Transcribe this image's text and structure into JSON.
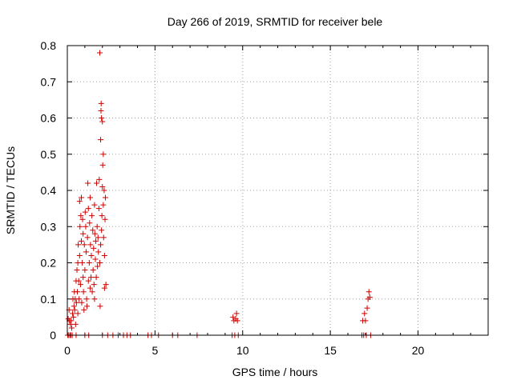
{
  "chart_data": {
    "type": "scatter",
    "title": "Day 266 of 2019, SRMTID for receiver bele",
    "xlabel": "GPS time / hours",
    "ylabel": "SRMTID / TECUs",
    "xlim": [
      0,
      24
    ],
    "ylim": [
      0,
      0.8
    ],
    "xticks": [
      0,
      5,
      10,
      15,
      20
    ],
    "yticks": [
      0,
      0.1,
      0.2,
      0.3,
      0.4,
      0.5,
      0.6,
      0.7,
      0.8
    ],
    "xtick_labels": [
      "0",
      "5",
      "10",
      "15",
      "20"
    ],
    "ytick_labels": [
      "0",
      "0.1",
      "0.2",
      "0.3",
      "0.4",
      "0.5",
      "0.6",
      "0.7",
      "0.8"
    ],
    "grid": true,
    "marker": "+",
    "color": "#d00000",
    "series": [
      {
        "name": "SRMTID",
        "points": [
          [
            0.02,
            0.0
          ],
          [
            0.05,
            0.045
          ],
          [
            0.08,
            0.0
          ],
          [
            0.1,
            0.07
          ],
          [
            0.12,
            0.04
          ],
          [
            0.15,
            0.0
          ],
          [
            0.18,
            0.03
          ],
          [
            0.2,
            0.0
          ],
          [
            0.22,
            0.04
          ],
          [
            0.25,
            0.02
          ],
          [
            0.28,
            0.0
          ],
          [
            0.3,
            0.06
          ],
          [
            0.32,
            0.1
          ],
          [
            0.35,
            0.05
          ],
          [
            0.38,
            0.08
          ],
          [
            0.4,
            0.12
          ],
          [
            0.42,
            0.07
          ],
          [
            0.45,
            0.1
          ],
          [
            0.47,
            0.03
          ],
          [
            0.5,
            0.0
          ],
          [
            0.5,
            0.15
          ],
          [
            0.52,
            0.09
          ],
          [
            0.55,
            0.18
          ],
          [
            0.57,
            0.12
          ],
          [
            0.6,
            0.2
          ],
          [
            0.6,
            0.06
          ],
          [
            0.62,
            0.25
          ],
          [
            0.65,
            0.15
          ],
          [
            0.67,
            0.1
          ],
          [
            0.7,
            0.22
          ],
          [
            0.7,
            0.37
          ],
          [
            0.72,
            0.3
          ],
          [
            0.75,
            0.14
          ],
          [
            0.77,
            0.33
          ],
          [
            0.8,
            0.26
          ],
          [
            0.8,
            0.38
          ],
          [
            0.82,
            0.09
          ],
          [
            0.85,
            0.2
          ],
          [
            0.87,
            0.32
          ],
          [
            0.9,
            0.16
          ],
          [
            0.9,
            0.28
          ],
          [
            0.92,
            0.12
          ],
          [
            0.95,
            0.07
          ],
          [
            0.97,
            0.25
          ],
          [
            1.0,
            0.0
          ],
          [
            1.0,
            0.18
          ],
          [
            1.02,
            0.34
          ],
          [
            1.05,
            0.3
          ],
          [
            1.07,
            0.23
          ],
          [
            1.1,
            0.1
          ],
          [
            1.12,
            0.08
          ],
          [
            1.15,
            0.27
          ],
          [
            1.17,
            0.42
          ],
          [
            1.2,
            0.35
          ],
          [
            1.2,
            0.15
          ],
          [
            1.22,
            0.0
          ],
          [
            1.25,
            0.2
          ],
          [
            1.27,
            0.31
          ],
          [
            1.3,
            0.38
          ],
          [
            1.3,
            0.13
          ],
          [
            1.32,
            0.25
          ],
          [
            1.35,
            0.16
          ],
          [
            1.37,
            0.22
          ],
          [
            1.4,
            0.33
          ],
          [
            1.42,
            0.12
          ],
          [
            1.45,
            0.29
          ],
          [
            1.47,
            0.18
          ],
          [
            1.5,
            0.24
          ],
          [
            1.52,
            0.14
          ],
          [
            1.55,
            0.1
          ],
          [
            1.55,
            0.36
          ],
          [
            1.57,
            0.28
          ],
          [
            1.6,
            0.21
          ],
          [
            1.62,
            0.26
          ],
          [
            1.65,
            0.16
          ],
          [
            1.67,
            0.42
          ],
          [
            1.7,
            0.3
          ],
          [
            1.72,
            0.19
          ],
          [
            1.75,
            0.27
          ],
          [
            1.77,
            0.23
          ],
          [
            1.8,
            0.35
          ],
          [
            1.82,
            0.43
          ],
          [
            1.85,
            0.2
          ],
          [
            1.85,
            0.78
          ],
          [
            1.87,
            0.08
          ],
          [
            1.9,
            0.25
          ],
          [
            1.9,
            0.54
          ],
          [
            1.92,
            0.62
          ],
          [
            1.93,
            0.64
          ],
          [
            1.95,
            0.6
          ],
          [
            1.95,
            0.29
          ],
          [
            1.97,
            0.33
          ],
          [
            2.0,
            0.59
          ],
          [
            2.0,
            0.41
          ],
          [
            2.02,
            0.47
          ],
          [
            2.05,
            0.5
          ],
          [
            2.05,
            0.36
          ],
          [
            2.07,
            0.27
          ],
          [
            2.1,
            0.4
          ],
          [
            2.12,
            0.22
          ],
          [
            2.12,
            0.13
          ],
          [
            2.15,
            0.32
          ],
          [
            2.17,
            0.38
          ],
          [
            2.2,
            0.14
          ],
          [
            2.0,
            0.0
          ],
          [
            2.3,
            0.0
          ],
          [
            2.6,
            0.0
          ],
          [
            2.9,
            0.0
          ],
          [
            3.2,
            0.0
          ],
          [
            3.4,
            0.0
          ],
          [
            3.6,
            0.0
          ],
          [
            4.6,
            0.0
          ],
          [
            4.8,
            0.0
          ],
          [
            5.2,
            0.0
          ],
          [
            6.0,
            0.0
          ],
          [
            6.3,
            0.0
          ],
          [
            7.4,
            0.0
          ],
          [
            9.4,
            0.0
          ],
          [
            9.45,
            0.05
          ],
          [
            9.5,
            0.04
          ],
          [
            9.55,
            0.0
          ],
          [
            9.6,
            0.045
          ],
          [
            9.65,
            0.06
          ],
          [
            9.7,
            0.04
          ],
          [
            9.75,
            0.0
          ],
          [
            16.8,
            0.0
          ],
          [
            16.85,
            0.04
          ],
          [
            16.9,
            0.0
          ],
          [
            16.95,
            0.06
          ],
          [
            17.0,
            0.04
          ],
          [
            17.05,
            0.0
          ],
          [
            17.1,
            0.075
          ],
          [
            17.15,
            0.1
          ],
          [
            17.2,
            0.12
          ],
          [
            17.25,
            0.105
          ],
          [
            17.3,
            0.0
          ]
        ]
      }
    ]
  }
}
